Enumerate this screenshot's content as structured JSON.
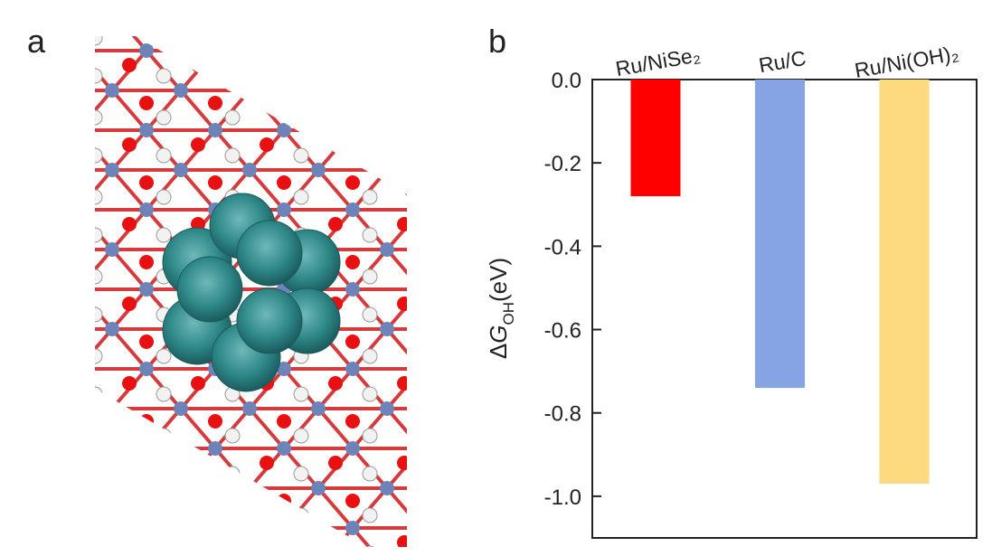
{
  "panel_labels": [
    "a",
    "b"
  ],
  "chart_data": {
    "type": "bar",
    "categories": [
      "Ru/NiSe₂",
      "Ru/C",
      "Ru/Ni(OH)₂"
    ],
    "values": [
      -0.28,
      -0.74,
      -0.97
    ],
    "colors": [
      "#ff0000",
      "#86a3e3",
      "#fdd97f"
    ],
    "y_label": {
      "delta": "Δ",
      "symbol": "G",
      "subscript": "OH",
      "unit": "(eV)"
    },
    "ylim": [
      -1.1,
      0.0
    ],
    "yticks": [
      {
        "value": 0.0,
        "label": "0.0"
      },
      -0.2,
      -0.4,
      -0.6,
      -0.8,
      {
        "value": -1.0,
        "label": "-1.0"
      }
    ]
  }
}
